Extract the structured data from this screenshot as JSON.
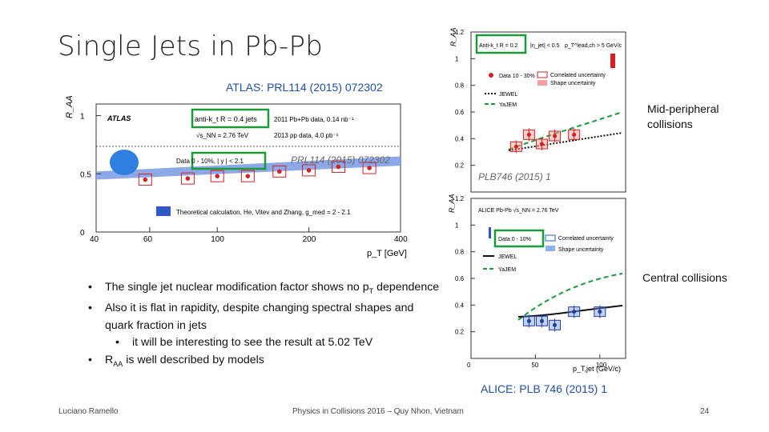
{
  "slide": {
    "title": "Single Jets in Pb-Pb",
    "atlas_ref": "ATLAS: PRL114 (2015) 072302",
    "alice_ref": "ALICE: PLB 746 (2015) 1",
    "label_midperipheral_1": "Mid-peripheral",
    "label_midperipheral_2": "collisions",
    "label_central": "Central collisions",
    "bullets": [
      {
        "text_a": "The single jet nuclear modification factor shows no p",
        "sub": "T",
        "text_b": " dependence"
      },
      {
        "text": "Also it is flat in rapidity, despite changing spectral shapes and quark fraction in jets"
      },
      {
        "text": "it will be interesting to see the result at 5.02 TeV"
      },
      {
        "text_a": "R",
        "sub": "AA",
        "text_b": " is well described by models"
      }
    ],
    "bullet_char": "•",
    "footer_left": "Luciano Ramello",
    "footer_center": "Physics in Collisions 2016 – Quy Nhon, Vietnam",
    "page_number": "24"
  },
  "colors": {
    "green_box": "#1a9a3a",
    "red": "#d62020",
    "blue": "#2f57c8",
    "band": "#7f9fe6",
    "title_blue": "#1f4ea8"
  },
  "chart_data": [
    {
      "type": "scatter",
      "name": "ATLAS",
      "ylabel": "R_AA",
      "xlabel": "p_T [GeV]",
      "xlim": [
        40,
        400
      ],
      "ylim": [
        0,
        1.1
      ],
      "x_ticks": [
        "40",
        "60",
        "100",
        "200",
        "400"
      ],
      "y_ticks": [
        "0",
        "0.5",
        "1"
      ],
      "log_x": true,
      "texts": {
        "experiment": "ATLAS",
        "algo": "anti-k_t R = 0.4 jets",
        "energy": "√s_NN = 2.76 TeV",
        "lumi_1": "2011 Pb+Pb data, 0.14 nb⁻¹",
        "lumi_2": "2013 pp data, 4.0 pb⁻¹",
        "data_label": "Data 0 - 10%, | y | < 2.1",
        "watermark": "PRL114 (2015) 072302",
        "theory": "Theoretical calculation, He, Vitev and Zhang, g_med = 2 - 2.1"
      },
      "points": [
        {
          "x": 58,
          "y": 0.45
        },
        {
          "x": 80,
          "y": 0.46
        },
        {
          "x": 100,
          "y": 0.48
        },
        {
          "x": 126,
          "y": 0.48
        },
        {
          "x": 160,
          "y": 0.52
        },
        {
          "x": 200,
          "y": 0.53
        },
        {
          "x": 250,
          "y": 0.56
        },
        {
          "x": 316,
          "y": 0.55
        }
      ],
      "theory_band": {
        "x": [
          40,
          400
        ],
        "y_low": [
          0.45,
          0.57
        ],
        "y_high": [
          0.52,
          0.65
        ]
      }
    },
    {
      "type": "scatter",
      "name": "ALICE mid-peripheral",
      "ylabel": "R_AA",
      "ylim": [
        0,
        1.2
      ],
      "y_ticks": [
        "0.2",
        "0.4",
        "0.6",
        "0.8",
        "1",
        "1.2"
      ],
      "texts": {
        "algo": "Anti-k_t R = 0.2",
        "cut": "|η_jet| < 0.5",
        "pt_cut": "p_T^lead,ch > 5 GeV/c",
        "data_label": "Data 10 - 30%",
        "legend": [
          "Correlated uncertainty",
          "Shape uncertainty",
          "JEWEL",
          "YaJEM"
        ],
        "watermark": "PLB746 (2015) 1"
      },
      "points": [
        {
          "x": 35,
          "y": 0.34
        },
        {
          "x": 45,
          "y": 0.43
        },
        {
          "x": 55,
          "y": 0.36
        },
        {
          "x": 65,
          "y": 0.42
        },
        {
          "x": 80,
          "y": 0.43
        }
      ]
    },
    {
      "type": "scatter",
      "name": "ALICE central",
      "ylabel": "R_AA",
      "xlabel": "p_T,jet (GeV/c)",
      "xlim": [
        0,
        120
      ],
      "ylim": [
        0,
        1.2
      ],
      "x_ticks": [
        "0",
        "50",
        "100"
      ],
      "y_ticks": [
        "0.2",
        "0.4",
        "0.6",
        "0.8",
        "1",
        "1.2"
      ],
      "texts": {
        "header": "ALICE  Pb-Pb  √s_NN = 2.76 TeV",
        "data_label": "Data 0 - 10%",
        "legend": [
          "Correlated uncertainty",
          "JEWEL",
          "Shape uncertainty",
          "YaJEM"
        ]
      },
      "points": [
        {
          "x": 45,
          "y": 0.28
        },
        {
          "x": 55,
          "y": 0.28
        },
        {
          "x": 65,
          "y": 0.25
        },
        {
          "x": 80,
          "y": 0.35
        },
        {
          "x": 100,
          "y": 0.35
        }
      ]
    }
  ]
}
